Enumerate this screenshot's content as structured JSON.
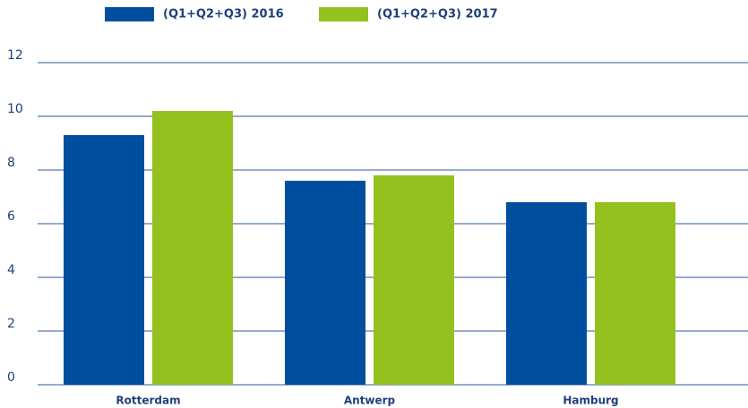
{
  "chart_data": {
    "type": "bar",
    "categories": [
      "Rotterdam",
      "Antwerp",
      "Hamburg"
    ],
    "series": [
      {
        "name": "(Q1+Q2+Q3) 2016",
        "color": "#004f9f",
        "values": [
          9.3,
          7.6,
          6.8
        ]
      },
      {
        "name": "(Q1+Q2+Q3) 2017",
        "color": "#95c11f",
        "values": [
          10.2,
          7.8,
          6.8
        ]
      }
    ],
    "ylim": [
      0,
      12
    ],
    "yticks": [
      0,
      2,
      4,
      6,
      8,
      10,
      12
    ],
    "grid": true,
    "legend": "top"
  }
}
